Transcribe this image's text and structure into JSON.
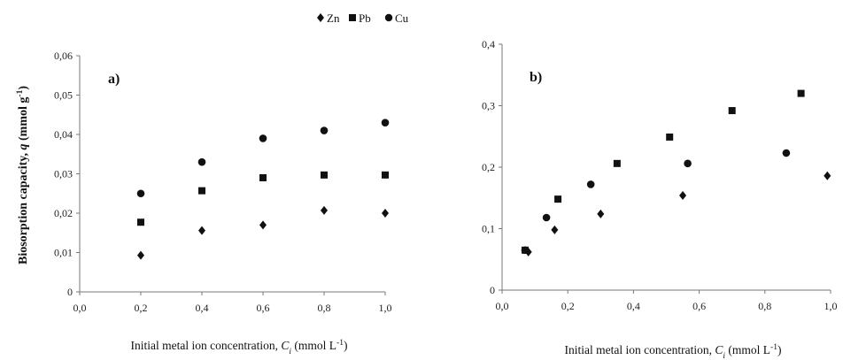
{
  "legend": {
    "entries": [
      {
        "label": "Zn",
        "marker": "diamond"
      },
      {
        "label": "Pb",
        "marker": "square"
      },
      {
        "label": "Cu",
        "marker": "circle"
      }
    ]
  },
  "ylabel": "Biosorption capacity, q (mmol g⁻¹)",
  "chart_data": [
    {
      "type": "scatter",
      "panel_label": "a)",
      "xlabel": "Initial metal ion concentration, Ci (mmol L⁻¹)",
      "xlim": [
        0,
        1.0
      ],
      "ylim": [
        0,
        0.06
      ],
      "x_ticks": [
        "0,0",
        "0,2",
        "0,4",
        "0,6",
        "0,8",
        "1,0"
      ],
      "y_ticks": [
        "0",
        "0,01",
        "0,02",
        "0,03",
        "0,04",
        "0,05",
        "0,06"
      ],
      "grid": false,
      "series": [
        {
          "name": "Zn",
          "marker": "diamond",
          "x": [
            0.2,
            0.4,
            0.6,
            0.8,
            1.0
          ],
          "y": [
            0.0093,
            0.0156,
            0.017,
            0.0207,
            0.02
          ]
        },
        {
          "name": "Pb",
          "marker": "square",
          "x": [
            0.2,
            0.4,
            0.6,
            0.8,
            1.0
          ],
          "y": [
            0.0177,
            0.0257,
            0.029,
            0.0297,
            0.0297
          ]
        },
        {
          "name": "Cu",
          "marker": "circle",
          "x": [
            0.2,
            0.4,
            0.6,
            0.8,
            1.0
          ],
          "y": [
            0.025,
            0.033,
            0.039,
            0.041,
            0.043
          ]
        }
      ]
    },
    {
      "type": "scatter",
      "panel_label": "b)",
      "xlabel": "Initial metal ion concentration, Ci (mmol L⁻¹)",
      "xlim": [
        0,
        1.0
      ],
      "ylim": [
        0,
        0.4
      ],
      "x_ticks": [
        "0,0",
        "0,2",
        "0,4",
        "0,6",
        "0,8",
        "1,0"
      ],
      "y_ticks": [
        "0",
        "0,1",
        "0,2",
        "0,3",
        "0,4"
      ],
      "grid": false,
      "series": [
        {
          "name": "Zn",
          "marker": "diamond",
          "x": [
            0.08,
            0.16,
            0.3,
            0.55,
            0.99
          ],
          "y": [
            0.062,
            0.098,
            0.124,
            0.154,
            0.186
          ]
        },
        {
          "name": "Pb",
          "marker": "square",
          "x": [
            0.07,
            0.17,
            0.35,
            0.51,
            0.7,
            0.91
          ],
          "y": [
            0.065,
            0.148,
            0.206,
            0.249,
            0.292,
            0.32
          ]
        },
        {
          "name": "Cu",
          "marker": "circle",
          "x": [
            0.07,
            0.135,
            0.27,
            0.565,
            0.865
          ],
          "y": [
            0.065,
            0.118,
            0.172,
            0.206,
            0.223
          ]
        }
      ]
    }
  ]
}
